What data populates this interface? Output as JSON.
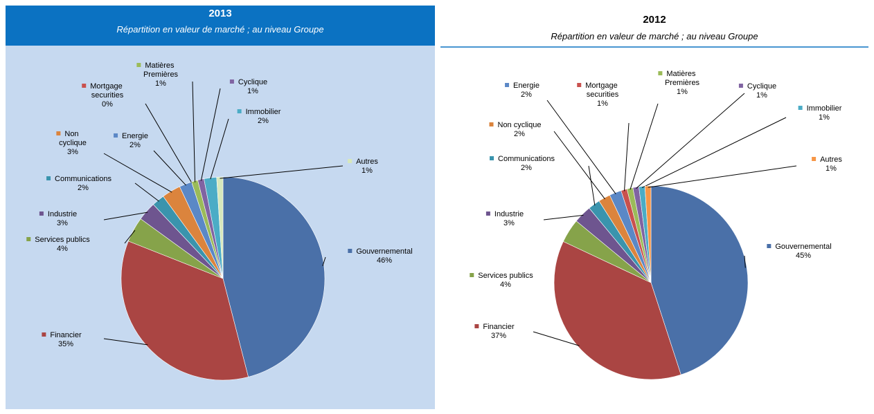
{
  "chart_data": [
    {
      "type": "pie",
      "title": "2013",
      "subtitle": "Répartition en valeur de marché ; au niveau Groupe",
      "categories": [
        "Gouvernemental",
        "Financier",
        "Services publics",
        "Industrie",
        "Communications",
        "Non cyclique",
        "Energie",
        "Mortgage securities",
        "Matières Premières",
        "Cyclique",
        "Immobilier",
        "Autres"
      ],
      "values": [
        46,
        35,
        4,
        3,
        2,
        3,
        2,
        0,
        1,
        1,
        2,
        1
      ],
      "value_labels": [
        "46%",
        "35%",
        "4%",
        "3%",
        "2%",
        "3%",
        "2%",
        "0%",
        "1%",
        "1%",
        "2%",
        "1%"
      ],
      "colors": [
        "#4a70a8",
        "#aa4543",
        "#86a34a",
        "#6e558f",
        "#3a94ad",
        "#db843d",
        "#5b88c6",
        "#c9514e",
        "#9bbb59",
        "#8064a2",
        "#4bacc6",
        "#d7e8bc"
      ]
    },
    {
      "type": "pie",
      "title": "2012",
      "subtitle": "Répartition en valeur de marché ; au niveau Groupe",
      "categories": [
        "Gouvernemental",
        "Financier",
        "Services publics",
        "Industrie",
        "Communications",
        "Non cyclique",
        "Energie",
        "Mortgage securities",
        "Matières Premières",
        "Cyclique",
        "Immobilier",
        "Autres"
      ],
      "values": [
        45,
        37,
        4,
        3,
        2,
        2,
        2,
        1,
        1,
        1,
        1,
        1
      ],
      "value_labels": [
        "45%",
        "37%",
        "4%",
        "3%",
        "2%",
        "2%",
        "2%",
        "1%",
        "1%",
        "1%",
        "1%",
        "1%"
      ],
      "colors": [
        "#4a70a8",
        "#aa4543",
        "#86a34a",
        "#6e558f",
        "#3a94ad",
        "#db843d",
        "#5b88c6",
        "#c9514e",
        "#9bbb59",
        "#8064a2",
        "#4bacc6",
        "#f79646"
      ]
    }
  ]
}
